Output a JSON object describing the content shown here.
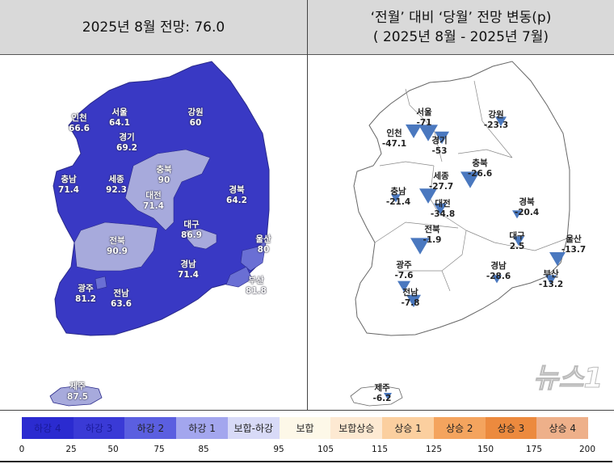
{
  "header": {
    "left_title": "2025년 8월 전망: 76.0",
    "right_title_line1": "‘전월’ 대비 ‘당월’ 전망 변동(p)",
    "right_title_line2": "( 2025년 8월 -  2025년 7월)"
  },
  "left_map": {
    "regions": [
      {
        "name": "인천",
        "value": "66.6"
      },
      {
        "name": "서울",
        "value": "64.1"
      },
      {
        "name": "경기",
        "value": "69.2"
      },
      {
        "name": "강원",
        "value": "60"
      },
      {
        "name": "충북",
        "value": "90"
      },
      {
        "name": "충남",
        "value": "71.4"
      },
      {
        "name": "세종",
        "value": "92.3"
      },
      {
        "name": "대전",
        "value": "71.4"
      },
      {
        "name": "경북",
        "value": "64.2"
      },
      {
        "name": "대구",
        "value": "86.9"
      },
      {
        "name": "울산",
        "value": "80"
      },
      {
        "name": "전북",
        "value": "90.9"
      },
      {
        "name": "경남",
        "value": "71.4"
      },
      {
        "name": "부산",
        "value": "81.8"
      },
      {
        "name": "광주",
        "value": "81.2"
      },
      {
        "name": "전남",
        "value": "63.6"
      },
      {
        "name": "제주",
        "value": "87.5"
      }
    ]
  },
  "right_map": {
    "regions": [
      {
        "name": "서울",
        "value": "-71"
      },
      {
        "name": "인천",
        "value": "-47.1"
      },
      {
        "name": "경기",
        "value": "-53"
      },
      {
        "name": "강원",
        "value": "-23.3"
      },
      {
        "name": "충북",
        "value": "-26.6"
      },
      {
        "name": "세종",
        "value": "-27.7"
      },
      {
        "name": "충남",
        "value": "-21.4"
      },
      {
        "name": "대전",
        "value": "-34.8"
      },
      {
        "name": "경북",
        "value": "-20.4"
      },
      {
        "name": "대구",
        "value": "2.5"
      },
      {
        "name": "울산",
        "value": "-13.7"
      },
      {
        "name": "전북",
        "value": "-1.9"
      },
      {
        "name": "광주",
        "value": "-7.6"
      },
      {
        "name": "경남",
        "value": "-28.6"
      },
      {
        "name": "부산",
        "value": "-13.2"
      },
      {
        "name": "전남",
        "value": "-7.8"
      },
      {
        "name": "제주",
        "value": "-6.2"
      }
    ],
    "marker_icon": "down-triangle",
    "marker_color": "#4a78bf"
  },
  "legend": {
    "categories": [
      {
        "label": "하강 4",
        "color": "#2b2bd0"
      },
      {
        "label": "하강 3",
        "color": "#3a3ad6"
      },
      {
        "label": "하강 2",
        "color": "#5b5fe0"
      },
      {
        "label": "하강 1",
        "color": "#a3a6ee"
      },
      {
        "label": "보합-하강",
        "color": "#d8daf7"
      },
      {
        "label": "보합",
        "color": "#fdf8e8"
      },
      {
        "label": "보합상승",
        "color": "#fde9d2"
      },
      {
        "label": "상승 1",
        "color": "#fbcf9f"
      },
      {
        "label": "상승 2",
        "color": "#f4a45e"
      },
      {
        "label": "상승 3",
        "color": "#ec8a3e"
      },
      {
        "label": "상승 4",
        "color": "#eeb08a"
      }
    ],
    "ticks": [
      "0",
      "25",
      "50",
      "75",
      "85",
      "95",
      "105",
      "115",
      "125",
      "150",
      "175",
      "200"
    ]
  },
  "colors": {
    "band_dark": "#3939c4",
    "band_light": "#a7aadc",
    "band_medium": "#6a6fd4"
  },
  "watermark": "뉴스1"
}
